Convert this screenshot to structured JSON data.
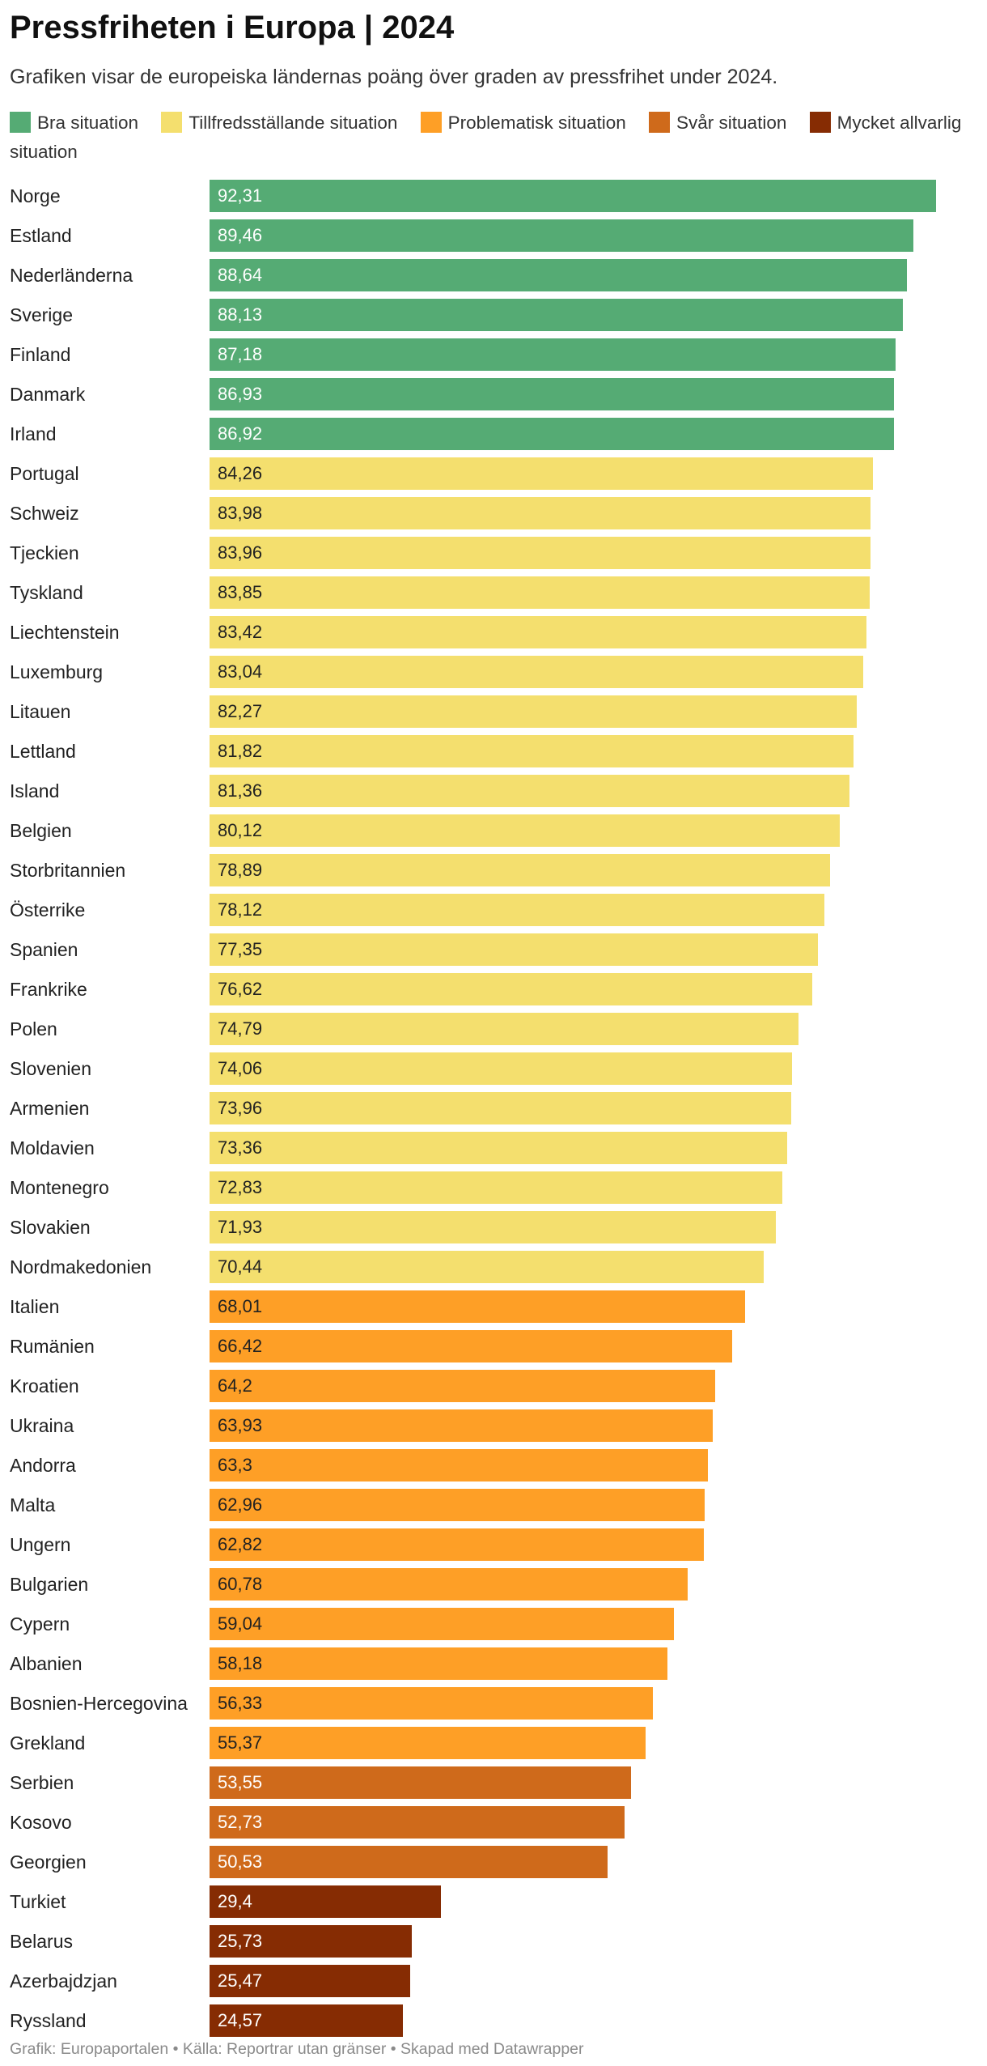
{
  "title": "Pressfriheten i Europa | 2024",
  "subtitle": "Grafiken visar de europeiska ländernas poäng över graden av pressfrihet under 2024.",
  "footer": "Grafik: Europaportalen • Källa: Reportrar utan gränser • Skapad med Datawrapper",
  "legend": [
    {
      "label": "Bra situation",
      "color": "#55ab74"
    },
    {
      "label": "Tillfredsställande situation",
      "color": "#f4df6e"
    },
    {
      "label": "Problematisk situation",
      "color": "#fe9f26"
    },
    {
      "label": "Svår situation",
      "color": "#cf6a1b"
    },
    {
      "label": "Mycket allvarlig situation",
      "color": "#862c03"
    }
  ],
  "chart_data": {
    "type": "bar",
    "orientation": "horizontal",
    "title": "Pressfriheten i Europa | 2024",
    "xlabel": "",
    "ylabel": "",
    "xlim": [
      0,
      92.31
    ],
    "grid": false,
    "legend_position": "top",
    "categories": [
      "Norge",
      "Estland",
      "Nederländerna",
      "Sverige",
      "Finland",
      "Danmark",
      "Irland",
      "Portugal",
      "Schweiz",
      "Tjeckien",
      "Tyskland",
      "Liechtenstein",
      "Luxemburg",
      "Litauen",
      "Lettland",
      "Island",
      "Belgien",
      "Storbritannien",
      "Österrike",
      "Spanien",
      "Frankrike",
      "Polen",
      "Slovenien",
      "Armenien",
      "Moldavien",
      "Montenegro",
      "Slovakien",
      "Nordmakedonien",
      "Italien",
      "Rumänien",
      "Kroatien",
      "Ukraina",
      "Andorra",
      "Malta",
      "Ungern",
      "Bulgarien",
      "Cypern",
      "Albanien",
      "Bosnien-Hercegovina",
      "Grekland",
      "Serbien",
      "Kosovo",
      "Georgien",
      "Turkiet",
      "Belarus",
      "Azerbajdzjan",
      "Ryssland"
    ],
    "values": [
      92.31,
      89.46,
      88.64,
      88.13,
      87.18,
      86.93,
      86.92,
      84.26,
      83.98,
      83.96,
      83.85,
      83.42,
      83.04,
      82.27,
      81.82,
      81.36,
      80.12,
      78.89,
      78.12,
      77.35,
      76.62,
      74.79,
      74.06,
      73.96,
      73.36,
      72.83,
      71.93,
      70.44,
      68.01,
      66.42,
      64.2,
      63.93,
      63.3,
      62.96,
      62.82,
      60.78,
      59.04,
      58.18,
      56.33,
      55.37,
      53.55,
      52.73,
      50.53,
      29.4,
      25.73,
      25.47,
      24.57
    ],
    "value_labels": [
      "92,31",
      "89,46",
      "88,64",
      "88,13",
      "87,18",
      "86,93",
      "86,92",
      "84,26",
      "83,98",
      "83,96",
      "83,85",
      "83,42",
      "83,04",
      "82,27",
      "81,82",
      "81,36",
      "80,12",
      "78,89",
      "78,12",
      "77,35",
      "76,62",
      "74,79",
      "74,06",
      "73,96",
      "73,36",
      "72,83",
      "71,93",
      "70,44",
      "68,01",
      "66,42",
      "64,2",
      "63,93",
      "63,3",
      "62,96",
      "62,82",
      "60,78",
      "59,04",
      "58,18",
      "56,33",
      "55,37",
      "53,55",
      "52,73",
      "50,53",
      "29,4",
      "25,73",
      "25,47",
      "24,57"
    ],
    "situation": [
      0,
      0,
      0,
      0,
      0,
      0,
      0,
      1,
      1,
      1,
      1,
      1,
      1,
      1,
      1,
      1,
      1,
      1,
      1,
      1,
      1,
      1,
      1,
      1,
      1,
      1,
      1,
      1,
      2,
      2,
      2,
      2,
      2,
      2,
      2,
      2,
      2,
      2,
      2,
      2,
      3,
      3,
      3,
      4,
      4,
      4,
      4
    ]
  }
}
